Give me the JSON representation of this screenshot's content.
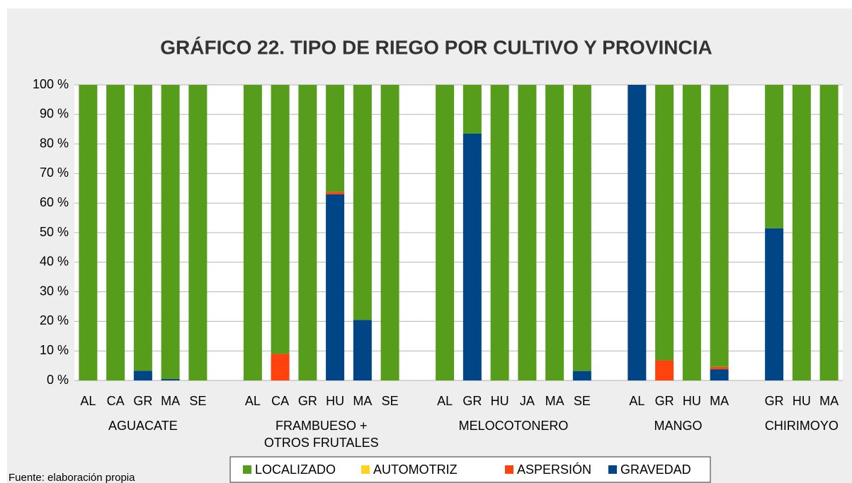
{
  "chart_data": {
    "type": "stacked_bar",
    "title": "GRÁFICO 22. TIPO DE RIEGO POR CULTIVO Y PROVINCIA",
    "note": "Fuente: elaboración propia",
    "categories": [
      "AL",
      "CA",
      "GR",
      "MA",
      "SE",
      null,
      "AL",
      "CA",
      "GR",
      "HU",
      "MA",
      "SE",
      null,
      "AL",
      "GR",
      "HU",
      "JA",
      "MA",
      "SE",
      null,
      "AL",
      "GR",
      "HU",
      "MA",
      null,
      "GR",
      "HU",
      "MA"
    ],
    "groups": [
      [
        "AGUACATE"
      ],
      [
        "FRAMBUESO +",
        "OTROS FRUTALES"
      ],
      [
        "MELOCOTONERO"
      ],
      [
        "MANGO"
      ],
      [
        "CHIRIMOYO"
      ]
    ],
    "series": [
      {
        "name": "LOCALIZADO",
        "color": "#579d1c",
        "values": [
          100,
          100,
          96.7,
          99.5,
          100,
          null,
          100,
          91,
          100,
          36.2,
          79.5,
          100,
          null,
          100,
          16.5,
          100,
          100,
          100,
          96.8,
          null,
          0,
          93.2,
          100,
          95.4,
          null,
          48.5,
          100,
          100
        ]
      },
      {
        "name": "AUTOMOTRIZ",
        "color": "#ffd320",
        "values": [
          0,
          0,
          0,
          0,
          0,
          null,
          0,
          0,
          0,
          0,
          0,
          0,
          null,
          0,
          0,
          0,
          0,
          0,
          0,
          null,
          0,
          0,
          0,
          0,
          null,
          0,
          0,
          0
        ]
      },
      {
        "name": "ASPERSIÓN",
        "color": "#ff420e",
        "values": [
          0,
          0,
          0,
          0,
          0,
          null,
          0,
          9,
          0,
          0.8,
          0,
          0,
          null,
          0,
          0,
          0,
          0,
          0,
          0,
          null,
          0,
          6.8,
          0,
          0.8,
          null,
          0,
          0,
          0
        ]
      },
      {
        "name": "GRAVEDAD",
        "color": "#004586",
        "values": [
          0,
          0,
          3.3,
          0.5,
          0,
          null,
          0,
          0,
          0,
          63,
          20.5,
          0,
          null,
          0,
          83.5,
          0,
          0,
          0,
          3.2,
          null,
          100,
          0,
          0,
          3.8,
          null,
          51.5,
          0,
          0
        ]
      }
    ],
    "ylim": [
      0,
      100
    ],
    "yticks": [
      {
        "value": 0,
        "label": "0 %"
      },
      {
        "value": 10,
        "label": "10 %"
      },
      {
        "value": 20,
        "label": "20 %"
      },
      {
        "value": 30,
        "label": "30 %"
      },
      {
        "value": 40,
        "label": "40 %"
      },
      {
        "value": 50,
        "label": "50 %"
      },
      {
        "value": 60,
        "label": "60 %"
      },
      {
        "value": 70,
        "label": "70 %"
      },
      {
        "value": 80,
        "label": "80 %"
      },
      {
        "value": 90,
        "label": "90 %"
      },
      {
        "value": 100,
        "label": "100 %"
      }
    ],
    "grid": true,
    "legend": "bottom"
  }
}
